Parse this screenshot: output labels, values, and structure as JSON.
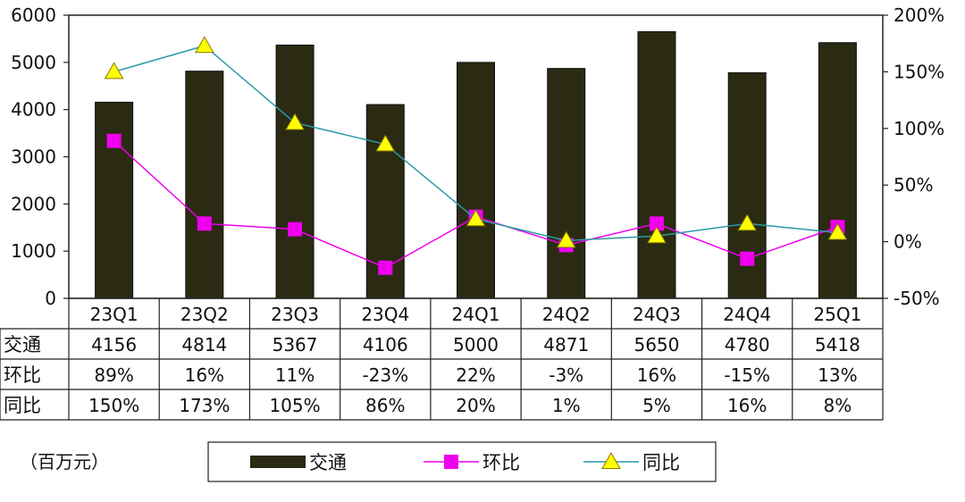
{
  "chart_data": {
    "type": "bar",
    "categories": [
      "23Q1",
      "23Q2",
      "23Q3",
      "23Q4",
      "24Q1",
      "24Q2",
      "24Q3",
      "24Q4",
      "25Q1"
    ],
    "ylim": [
      0,
      6000
    ],
    "y_ticks": [
      0,
      1000,
      2000,
      3000,
      4000,
      5000,
      6000
    ],
    "y2lim": [
      -50,
      200
    ],
    "y2_ticks": [
      "-50%",
      "0%",
      "50%",
      "100%",
      "150%",
      "200%"
    ],
    "grid": false,
    "legend_position": "bottom",
    "unit_note": "（百万元）",
    "series": [
      {
        "name": "交通",
        "kind": "bar",
        "axis": "left",
        "color": "#2b2a12",
        "values": [
          4156,
          4814,
          5367,
          4106,
          5000,
          4871,
          5650,
          4780,
          5418
        ]
      },
      {
        "name": "环比",
        "kind": "line",
        "axis": "right",
        "color": "#ee00ee",
        "marker": "square",
        "values": [
          89,
          16,
          11,
          -23,
          22,
          -3,
          16,
          -15,
          13
        ]
      },
      {
        "name": "同比",
        "kind": "line",
        "axis": "right",
        "color": "#2a9aa8",
        "marker": "triangle",
        "marker_color": "#ffff00",
        "values": [
          150,
          173,
          105,
          86,
          20,
          1,
          5,
          16,
          8
        ]
      }
    ],
    "table": {
      "rows": [
        {
          "label": "交通",
          "cells": [
            "4156",
            "4814",
            "5367",
            "4106",
            "5000",
            "4871",
            "5650",
            "4780",
            "5418"
          ]
        },
        {
          "label": "环比",
          "cells": [
            "89%",
            "16%",
            "11%",
            "-23%",
            "22%",
            "-3%",
            "16%",
            "-15%",
            "13%"
          ]
        },
        {
          "label": "同比",
          "cells": [
            "150%",
            "173%",
            "105%",
            "86%",
            "20%",
            "1%",
            "5%",
            "16%",
            "8%"
          ]
        }
      ]
    }
  }
}
